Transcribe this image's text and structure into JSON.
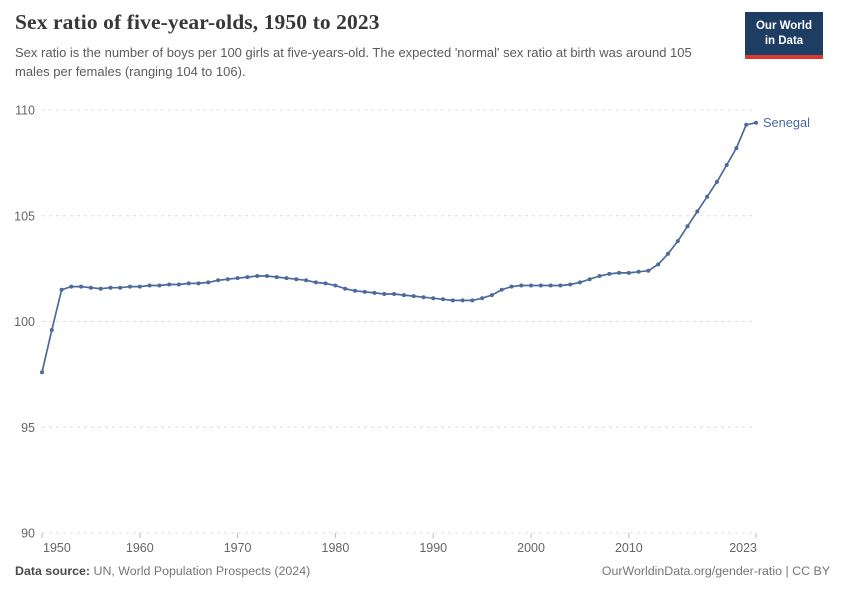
{
  "header": {
    "title": "Sex ratio of five-year-olds, 1950 to 2023",
    "subtitle": "Sex ratio is the number of boys per 100 girls at five-years-old. The expected 'normal' sex ratio at birth was around 105 males per females (ranging 104 to 106).",
    "logo": {
      "line1": "Our World",
      "line2": "in Data",
      "bg_color": "#1d3d63",
      "accent_color": "#dc3a2d"
    }
  },
  "chart_data": {
    "type": "line",
    "title": "Sex ratio of five-year-olds, 1950 to 2023",
    "xlabel": "",
    "ylabel": "",
    "xlim": [
      1950,
      2023
    ],
    "ylim": [
      90,
      110
    ],
    "x_ticks": [
      1950,
      1960,
      1970,
      1980,
      1990,
      2000,
      2010,
      2023
    ],
    "y_ticks": [
      90,
      95,
      100,
      105,
      110
    ],
    "grid": "horizontal-dashed",
    "legend_position": "end-of-line-label",
    "x": [
      1950,
      1951,
      1952,
      1953,
      1954,
      1955,
      1956,
      1957,
      1958,
      1959,
      1960,
      1961,
      1962,
      1963,
      1964,
      1965,
      1966,
      1967,
      1968,
      1969,
      1970,
      1971,
      1972,
      1973,
      1974,
      1975,
      1976,
      1977,
      1978,
      1979,
      1980,
      1981,
      1982,
      1983,
      1984,
      1985,
      1986,
      1987,
      1988,
      1989,
      1990,
      1991,
      1992,
      1993,
      1994,
      1995,
      1996,
      1997,
      1998,
      1999,
      2000,
      2001,
      2002,
      2003,
      2004,
      2005,
      2006,
      2007,
      2008,
      2009,
      2010,
      2011,
      2012,
      2013,
      2014,
      2015,
      2016,
      2017,
      2018,
      2019,
      2020,
      2021,
      2022,
      2023
    ],
    "series": [
      {
        "name": "Senegal",
        "color": "#4C6A9C",
        "values": [
          97.6,
          99.6,
          101.5,
          101.65,
          101.65,
          101.6,
          101.55,
          101.6,
          101.6,
          101.65,
          101.65,
          101.7,
          101.7,
          101.75,
          101.75,
          101.8,
          101.8,
          101.85,
          101.95,
          102.0,
          102.05,
          102.1,
          102.15,
          102.15,
          102.1,
          102.05,
          102.0,
          101.95,
          101.85,
          101.8,
          101.7,
          101.55,
          101.45,
          101.4,
          101.35,
          101.3,
          101.3,
          101.25,
          101.2,
          101.15,
          101.1,
          101.05,
          101.0,
          101.0,
          101.0,
          101.1,
          101.25,
          101.5,
          101.65,
          101.7,
          101.7,
          101.7,
          101.7,
          101.7,
          101.75,
          101.85,
          102.0,
          102.15,
          102.25,
          102.3,
          102.3,
          102.35,
          102.4,
          102.7,
          103.2,
          103.8,
          104.5,
          105.2,
          105.9,
          106.6,
          107.4,
          108.2,
          109.3,
          109.4
        ]
      }
    ],
    "style": {
      "grid_color": "#dcdcdc",
      "tick_color": "#bbbbbb",
      "axis_label_color": "#666666"
    }
  },
  "footer": {
    "datasource_label": "Data source:",
    "datasource_value": " UN, World Population Prospects (2024)",
    "link": "OurWorldinData.org/gender-ratio | CC BY"
  }
}
